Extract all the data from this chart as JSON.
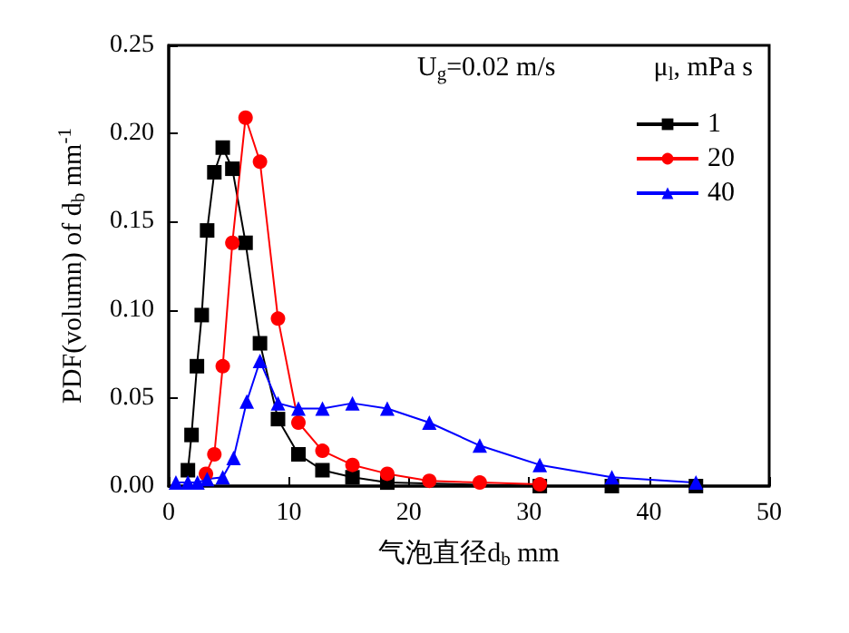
{
  "chart_data": {
    "type": "line",
    "xlabel": "气泡直径d$_{b}$ mm",
    "ylabel": "PDF(volumn) of d$_{b}$ mm$^{-1}$",
    "legend_title": "μ$_{l}$, mPa s",
    "annotations": [
      "U$_{g}$=0.02 m/s"
    ],
    "xlim": [
      0,
      50
    ],
    "xticks": [
      0,
      10,
      20,
      30,
      40,
      50
    ],
    "ylim": [
      0,
      0.25
    ],
    "yticks": [
      {
        "value": 0,
        "label": "0.00"
      },
      {
        "value": 0.05,
        "label": "0.05"
      },
      {
        "value": 0.1,
        "label": "0.10"
      },
      {
        "value": 0.15,
        "label": "0.15"
      },
      {
        "value": 0.2,
        "label": "0.20"
      },
      {
        "value": 0.25,
        "label": "0.25"
      }
    ],
    "grid": false,
    "legend": "top right",
    "line_style": "solid",
    "series": [
      {
        "name": "1",
        "color": "#000000",
        "marker": "square",
        "x": [
          1.6,
          1.9,
          2.35,
          2.75,
          3.2,
          3.8,
          4.5,
          5.3,
          6.4,
          7.6,
          9.1,
          10.8,
          12.8,
          15.3,
          18.2,
          30.9,
          36.9,
          43.9
        ],
        "values": [
          0.009,
          0.029,
          0.068,
          0.097,
          0.145,
          0.178,
          0.192,
          0.18,
          0.138,
          0.081,
          0.038,
          0.018,
          0.009,
          0.005,
          0.002,
          0,
          0,
          0
        ]
      },
      {
        "name": "20",
        "color": "#ff0000",
        "marker": "circle",
        "x": [
          3.1,
          3.8,
          4.5,
          5.3,
          6.4,
          7.6,
          9.1,
          10.8,
          12.8,
          15.3,
          18.2,
          21.7,
          25.9,
          30.9
        ],
        "values": [
          0.007,
          0.018,
          0.068,
          0.138,
          0.209,
          0.184,
          0.095,
          0.036,
          0.02,
          0.012,
          0.007,
          0.003,
          0.002,
          0.001
        ]
      },
      {
        "name": "40",
        "color": "#0000ff",
        "marker": "triangle",
        "x": [
          0.6,
          1.6,
          2.4,
          3.2,
          4.5,
          5.4,
          6.5,
          7.6,
          9.1,
          10.8,
          12.8,
          15.3,
          18.2,
          21.7,
          25.9,
          30.9,
          36.9,
          43.9
        ],
        "values": [
          0.002,
          0.002,
          0.002,
          0.004,
          0.005,
          0.016,
          0.048,
          0.071,
          0.047,
          0.044,
          0.044,
          0.047,
          0.044,
          0.036,
          0.023,
          0.012,
          0.005,
          0.002
        ]
      }
    ]
  }
}
